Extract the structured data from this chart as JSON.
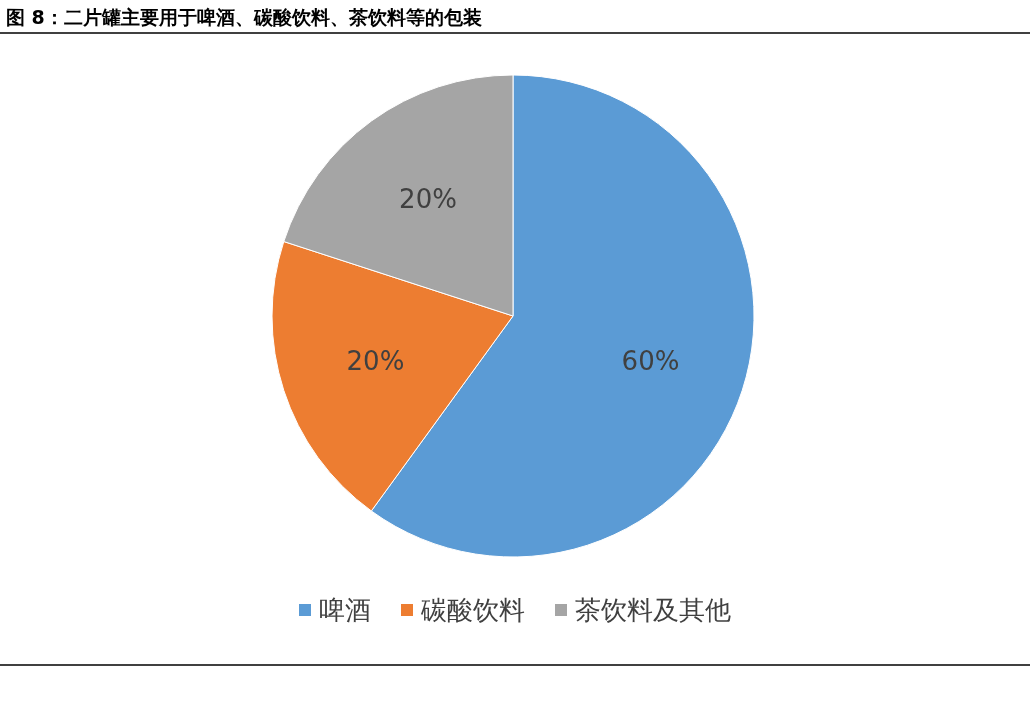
{
  "chart_data": {
    "type": "pie",
    "title": "图 8：二片罐主要用于啤酒、碳酸饮料、茶饮料等的包装",
    "categories": [
      "啤酒",
      "碳酸饮料",
      "茶饮料及其他"
    ],
    "values": [
      60,
      20,
      20
    ],
    "colors": [
      "#5b9bd5",
      "#ed7d31",
      "#a5a5a5"
    ],
    "value_labels": [
      "60%",
      "20%",
      "20%"
    ],
    "legend": "bottom"
  }
}
